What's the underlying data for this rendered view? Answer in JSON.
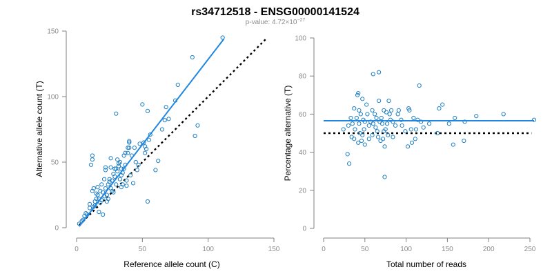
{
  "title": "rs34712518 - ENSG00000141524",
  "subtitle": {
    "prefix": "p-value: 4.72×10",
    "exponent": "−27"
  },
  "colors": {
    "points": "#1f7fc2",
    "fit_line": "#2186e0",
    "reference_line": "#000000",
    "axis": "#7f7f7f",
    "tick_label": "#8a8a8a"
  },
  "chart_data": [
    {
      "type": "scatter",
      "xlabel": "Reference allele count (C)",
      "ylabel": "Alternative allele count (T)",
      "xlim": [
        0,
        150
      ],
      "ylim": [
        0,
        150
      ],
      "xticks": [
        0,
        50,
        100,
        150
      ],
      "yticks": [
        0,
        50,
        100,
        150
      ],
      "grid": false,
      "points": [
        [
          2,
          3
        ],
        [
          4,
          5
        ],
        [
          5,
          6
        ],
        [
          6,
          9
        ],
        [
          7,
          11
        ],
        [
          8,
          10
        ],
        [
          10,
          15
        ],
        [
          10,
          18
        ],
        [
          11,
          48
        ],
        [
          12,
          52
        ],
        [
          12,
          55
        ],
        [
          12,
          28
        ],
        [
          13,
          30
        ],
        [
          13,
          16
        ],
        [
          14,
          17
        ],
        [
          14,
          20
        ],
        [
          15,
          22
        ],
        [
          15,
          26
        ],
        [
          16,
          25
        ],
        [
          16,
          31
        ],
        [
          17,
          12
        ],
        [
          17,
          22
        ],
        [
          18,
          19
        ],
        [
          18,
          28
        ],
        [
          19,
          33
        ],
        [
          19,
          21
        ],
        [
          20,
          10
        ],
        [
          20,
          27
        ],
        [
          21,
          37
        ],
        [
          21,
          24
        ],
        [
          22,
          30
        ],
        [
          22,
          44
        ],
        [
          22,
          46
        ],
        [
          23,
          20
        ],
        [
          23,
          25
        ],
        [
          24,
          22
        ],
        [
          24,
          33
        ],
        [
          25,
          35
        ],
        [
          25,
          37
        ],
        [
          26,
          46
        ],
        [
          26,
          53
        ],
        [
          26,
          30
        ],
        [
          27,
          36
        ],
        [
          27,
          28
        ],
        [
          28,
          41
        ],
        [
          28,
          27
        ],
        [
          29,
          45
        ],
        [
          29,
          39
        ],
        [
          30,
          87
        ],
        [
          30,
          45
        ],
        [
          30,
          33
        ],
        [
          31,
          52
        ],
        [
          31,
          43
        ],
        [
          32,
          47
        ],
        [
          32,
          49
        ],
        [
          33,
          50
        ],
        [
          33,
          37
        ],
        [
          34,
          40
        ],
        [
          34,
          45
        ],
        [
          34,
          31
        ],
        [
          35,
          33
        ],
        [
          35,
          42
        ],
        [
          36,
          45
        ],
        [
          36,
          55
        ],
        [
          37,
          48
        ],
        [
          37,
          57
        ],
        [
          38,
          36
        ],
        [
          38,
          32
        ],
        [
          39,
          57
        ],
        [
          39,
          61
        ],
        [
          40,
          61
        ],
        [
          40,
          66
        ],
        [
          40,
          65
        ],
        [
          41,
          40
        ],
        [
          42,
          55
        ],
        [
          43,
          34
        ],
        [
          44,
          61
        ],
        [
          45,
          50
        ],
        [
          46,
          44
        ],
        [
          47,
          48
        ],
        [
          48,
          64
        ],
        [
          50,
          94
        ],
        [
          51,
          65
        ],
        [
          52,
          57
        ],
        [
          52,
          62
        ],
        [
          53,
          60
        ],
        [
          54,
          89
        ],
        [
          54,
          20
        ],
        [
          55,
          67
        ],
        [
          56,
          71
        ],
        [
          60,
          44
        ],
        [
          62,
          51
        ],
        [
          65,
          75
        ],
        [
          67,
          82
        ],
        [
          68,
          92
        ],
        [
          70,
          83
        ],
        [
          75,
          97
        ],
        [
          77,
          109
        ],
        [
          88,
          130
        ],
        [
          90,
          70
        ],
        [
          92,
          78
        ],
        [
          111,
          145
        ]
      ],
      "fit_line": {
        "from": [
          2,
          1
        ],
        "to": [
          112,
          144
        ]
      },
      "reference_line": {
        "from": [
          2,
          2
        ],
        "to": [
          145,
          145
        ]
      }
    },
    {
      "type": "scatter",
      "xlabel": "Total number of reads",
      "ylabel": "Percentage alternative (T)",
      "xlim": [
        0,
        250
      ],
      "ylim": [
        0,
        100
      ],
      "xticks": [
        0,
        50,
        100,
        150,
        200,
        250
      ],
      "yticks": [
        0,
        20,
        40,
        60,
        80,
        100
      ],
      "grid": false,
      "points": [
        [
          24,
          52
        ],
        [
          29,
          39
        ],
        [
          30,
          54
        ],
        [
          31,
          34
        ],
        [
          33,
          58
        ],
        [
          34,
          48
        ],
        [
          35,
          55
        ],
        [
          37,
          63
        ],
        [
          37,
          47
        ],
        [
          38,
          52
        ],
        [
          40,
          58
        ],
        [
          41,
          70
        ],
        [
          42,
          71
        ],
        [
          42,
          45
        ],
        [
          43,
          62
        ],
        [
          43,
          55
        ],
        [
          44,
          50
        ],
        [
          45,
          60
        ],
        [
          46,
          46
        ],
        [
          47,
          68
        ],
        [
          47,
          49
        ],
        [
          48,
          57
        ],
        [
          49,
          52
        ],
        [
          50,
          44
        ],
        [
          50,
          56
        ],
        [
          52,
          65
        ],
        [
          53,
          60
        ],
        [
          55,
          47
        ],
        [
          55,
          54
        ],
        [
          57,
          56
        ],
        [
          59,
          49
        ],
        [
          59,
          62
        ],
        [
          60,
          81
        ],
        [
          60,
          55
        ],
        [
          62,
          60
        ],
        [
          63,
          53
        ],
        [
          64,
          58
        ],
        [
          65,
          51
        ],
        [
          66,
          48
        ],
        [
          67,
          82
        ],
        [
          67,
          67
        ],
        [
          68,
          56
        ],
        [
          69,
          46
        ],
        [
          70,
          58
        ],
        [
          71,
          55
        ],
        [
          72,
          47
        ],
        [
          73,
          62
        ],
        [
          73,
          51
        ],
        [
          74,
          27
        ],
        [
          74,
          43
        ],
        [
          75,
          52
        ],
        [
          76,
          61
        ],
        [
          77,
          55
        ],
        [
          78,
          49
        ],
        [
          79,
          67
        ],
        [
          80,
          60
        ],
        [
          81,
          57
        ],
        [
          82,
          62
        ],
        [
          84,
          48
        ],
        [
          84,
          56
        ],
        [
          87,
          54
        ],
        [
          90,
          60
        ],
        [
          91,
          62
        ],
        [
          94,
          57
        ],
        [
          95,
          54
        ],
        [
          99,
          51
        ],
        [
          102,
          43
        ],
        [
          103,
          63
        ],
        [
          104,
          62
        ],
        [
          106,
          52
        ],
        [
          107,
          45
        ],
        [
          109,
          58
        ],
        [
          111,
          47
        ],
        [
          112,
          52
        ],
        [
          114,
          57
        ],
        [
          116,
          75
        ],
        [
          118,
          56
        ],
        [
          121,
          53
        ],
        [
          128,
          55
        ],
        [
          138,
          50
        ],
        [
          140,
          63
        ],
        [
          144,
          65
        ],
        [
          152,
          55
        ],
        [
          157,
          44
        ],
        [
          159,
          58
        ],
        [
          170,
          46
        ],
        [
          171,
          56
        ],
        [
          185,
          59
        ],
        [
          218,
          60
        ],
        [
          255,
          57
        ]
      ],
      "fit_line": {
        "from": [
          0,
          56.5
        ],
        "to": [
          255,
          56.5
        ]
      },
      "reference_line": {
        "from": [
          0,
          50
        ],
        "to": [
          252,
          50
        ]
      }
    }
  ]
}
